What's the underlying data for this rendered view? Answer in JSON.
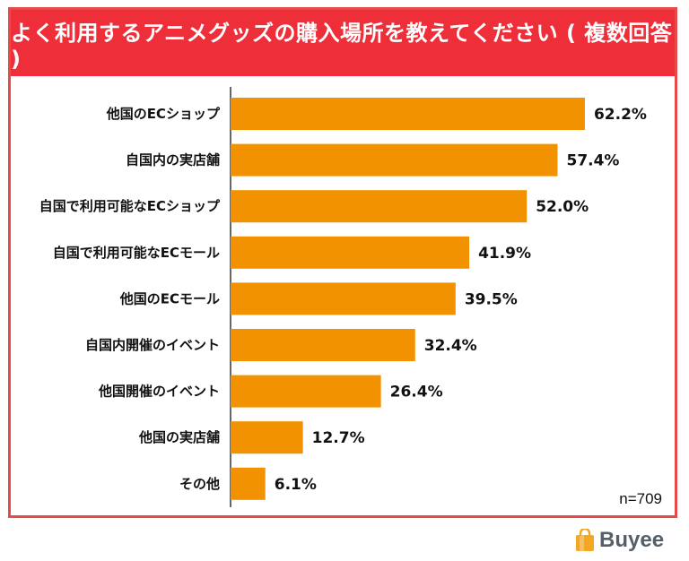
{
  "title": "よく利用するアニメグッズの購入場所を教えてください ( 複数回答 )",
  "sample_note": "n=709",
  "brand": {
    "name": "Buyee",
    "accent": "#f5a623"
  },
  "colors": {
    "bar": "#f29200",
    "title_bg": "#ee2f3a",
    "frame": "#e84a4a"
  },
  "chart_data": {
    "type": "bar",
    "orientation": "horizontal",
    "categories": [
      "他国のECショップ",
      "自国内の実店舗",
      "自国で利用可能なECショップ",
      "自国で利用可能なECモール",
      "他国のECモール",
      "自国内開催のイベント",
      "他国開催のイベント",
      "他国の実店舗",
      "その他"
    ],
    "values": [
      62.2,
      57.4,
      52.0,
      41.9,
      39.5,
      32.4,
      26.4,
      12.7,
      6.1
    ],
    "value_labels": [
      "62.2%",
      "57.4%",
      "52.0%",
      "41.9%",
      "39.5%",
      "32.4%",
      "26.4%",
      "12.7%",
      "6.1%"
    ],
    "unit": "%",
    "xlim": [
      0,
      100
    ],
    "grid": false,
    "legend": "none"
  }
}
